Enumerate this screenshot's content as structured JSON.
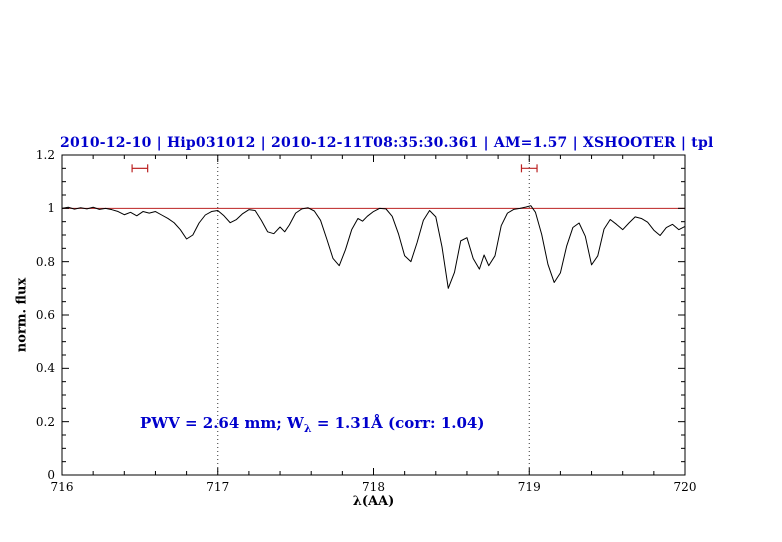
{
  "header": {
    "title": "2010-12-10 | Hip031012 | 2010-12-11T08:35:30.361 | AM=1.57 | XSHOOTER | tpl",
    "title_color": "#0000cc"
  },
  "annotation": {
    "prefix": "PWV = 2.64 mm; W",
    "sub": "λ",
    "suffix": " = 1.31Å (corr: 1.04)",
    "color": "#0000cc"
  },
  "chart_data": {
    "type": "line",
    "title": "2010-12-10 | Hip031012 | 2010-12-11T08:35:30.361 | AM=1.57 | XSHOOTER | tpl",
    "xlabel": "λ(AA)",
    "ylabel": "norm. flux",
    "xlim": [
      716,
      720
    ],
    "ylim": [
      0,
      1.2
    ],
    "grid": false,
    "x_tick_values": [
      716,
      717,
      718,
      719,
      720
    ],
    "x_tick_labels": [
      "716",
      "717",
      "718",
      "719",
      "720"
    ],
    "y_tick_values": [
      0,
      0.2,
      0.4,
      0.6,
      0.8,
      1,
      1.2
    ],
    "y_tick_labels": [
      "0",
      "0.2",
      "0.4",
      "0.6",
      "0.8",
      "1",
      "1.2"
    ],
    "vlines": [
      717,
      719
    ],
    "hline": 1.0,
    "markers": [
      {
        "x": 716.5,
        "half_width": 0.05,
        "y": 1.15
      },
      {
        "x": 719.0,
        "half_width": 0.05,
        "y": 1.15
      }
    ],
    "colors": {
      "spectrum": "#000000",
      "reference": "#bb2222",
      "frame": "#000000",
      "dotted": "#333333"
    },
    "series": [
      {
        "name": "telluric-spectrum",
        "points": [
          [
            716.0,
            1.0
          ],
          [
            716.04,
            1.004
          ],
          [
            716.08,
            0.997
          ],
          [
            716.12,
            1.002
          ],
          [
            716.16,
            0.998
          ],
          [
            716.2,
            1.004
          ],
          [
            716.24,
            0.996
          ],
          [
            716.28,
            1.0
          ],
          [
            716.32,
            0.995
          ],
          [
            716.36,
            0.988
          ],
          [
            716.4,
            0.976
          ],
          [
            716.44,
            0.985
          ],
          [
            716.48,
            0.972
          ],
          [
            716.52,
            0.988
          ],
          [
            716.56,
            0.982
          ],
          [
            716.6,
            0.988
          ],
          [
            716.64,
            0.975
          ],
          [
            716.68,
            0.962
          ],
          [
            716.72,
            0.946
          ],
          [
            716.76,
            0.92
          ],
          [
            716.8,
            0.885
          ],
          [
            716.84,
            0.9
          ],
          [
            716.88,
            0.945
          ],
          [
            716.92,
            0.975
          ],
          [
            716.96,
            0.988
          ],
          [
            717.0,
            0.992
          ],
          [
            717.04,
            0.972
          ],
          [
            717.08,
            0.946
          ],
          [
            717.12,
            0.958
          ],
          [
            717.16,
            0.98
          ],
          [
            717.2,
            0.995
          ],
          [
            717.24,
            0.992
          ],
          [
            717.28,
            0.955
          ],
          [
            717.32,
            0.912
          ],
          [
            717.36,
            0.905
          ],
          [
            717.4,
            0.93
          ],
          [
            717.43,
            0.912
          ],
          [
            717.46,
            0.938
          ],
          [
            717.5,
            0.982
          ],
          [
            717.54,
            0.998
          ],
          [
            717.58,
            1.002
          ],
          [
            717.62,
            0.99
          ],
          [
            717.66,
            0.955
          ],
          [
            717.7,
            0.885
          ],
          [
            717.74,
            0.812
          ],
          [
            717.78,
            0.785
          ],
          [
            717.82,
            0.845
          ],
          [
            717.86,
            0.92
          ],
          [
            717.9,
            0.962
          ],
          [
            717.93,
            0.952
          ],
          [
            717.96,
            0.97
          ],
          [
            718.0,
            0.988
          ],
          [
            718.04,
            1.0
          ],
          [
            718.08,
            0.998
          ],
          [
            718.12,
            0.97
          ],
          [
            718.16,
            0.905
          ],
          [
            718.2,
            0.822
          ],
          [
            718.24,
            0.8
          ],
          [
            718.28,
            0.872
          ],
          [
            718.32,
            0.955
          ],
          [
            718.36,
            0.992
          ],
          [
            718.4,
            0.968
          ],
          [
            718.44,
            0.855
          ],
          [
            718.48,
            0.7
          ],
          [
            718.52,
            0.76
          ],
          [
            718.56,
            0.878
          ],
          [
            718.6,
            0.89
          ],
          [
            718.64,
            0.812
          ],
          [
            718.68,
            0.772
          ],
          [
            718.71,
            0.825
          ],
          [
            718.74,
            0.785
          ],
          [
            718.78,
            0.822
          ],
          [
            718.82,
            0.935
          ],
          [
            718.86,
            0.982
          ],
          [
            718.9,
            0.996
          ],
          [
            718.94,
            1.0
          ],
          [
            718.98,
            1.005
          ],
          [
            719.01,
            1.01
          ],
          [
            719.04,
            0.985
          ],
          [
            719.08,
            0.902
          ],
          [
            719.12,
            0.79
          ],
          [
            719.16,
            0.722
          ],
          [
            719.2,
            0.758
          ],
          [
            719.24,
            0.858
          ],
          [
            719.28,
            0.928
          ],
          [
            719.32,
            0.945
          ],
          [
            719.36,
            0.895
          ],
          [
            719.4,
            0.788
          ],
          [
            719.44,
            0.822
          ],
          [
            719.48,
            0.922
          ],
          [
            719.52,
            0.958
          ],
          [
            719.56,
            0.94
          ],
          [
            719.6,
            0.92
          ],
          [
            719.64,
            0.945
          ],
          [
            719.68,
            0.968
          ],
          [
            719.72,
            0.962
          ],
          [
            719.76,
            0.948
          ],
          [
            719.8,
            0.918
          ],
          [
            719.84,
            0.898
          ],
          [
            719.88,
            0.928
          ],
          [
            719.92,
            0.94
          ],
          [
            719.96,
            0.92
          ],
          [
            720.0,
            0.932
          ]
        ]
      }
    ]
  }
}
